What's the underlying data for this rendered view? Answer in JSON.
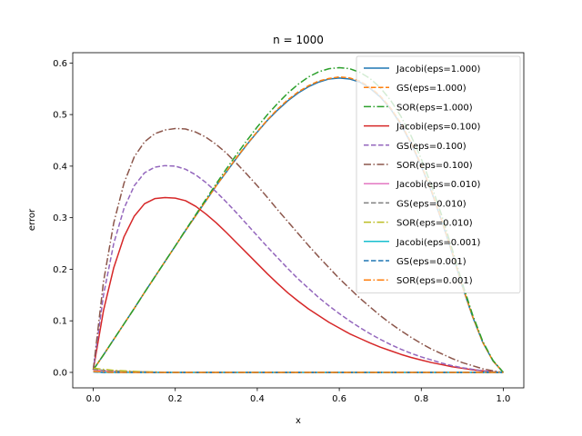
{
  "chart_data": {
    "type": "line",
    "title": "n = 1000",
    "xlabel": "x",
    "ylabel": "error",
    "xlim": [
      -0.05,
      1.05
    ],
    "ylim": [
      -0.03,
      0.62
    ],
    "xticks": [
      0.0,
      0.2,
      0.4,
      0.6,
      0.8,
      1.0
    ],
    "xtick_labels": [
      "0.0",
      "0.2",
      "0.4",
      "0.6",
      "0.8",
      "1.0"
    ],
    "yticks": [
      0.0,
      0.1,
      0.2,
      0.3,
      0.4,
      0.5,
      0.6
    ],
    "ytick_labels": [
      "0.0",
      "0.1",
      "0.2",
      "0.3",
      "0.4",
      "0.5",
      "0.6"
    ],
    "grid": false,
    "legend_position": "top-right",
    "x": [
      0.0,
      0.025,
      0.05,
      0.075,
      0.1,
      0.125,
      0.15,
      0.175,
      0.2,
      0.225,
      0.25,
      0.275,
      0.3,
      0.325,
      0.35,
      0.375,
      0.4,
      0.425,
      0.45,
      0.475,
      0.5,
      0.525,
      0.55,
      0.575,
      0.6,
      0.625,
      0.65,
      0.675,
      0.7,
      0.725,
      0.75,
      0.775,
      0.8,
      0.825,
      0.85,
      0.875,
      0.9,
      0.925,
      0.95,
      0.975,
      1.0
    ],
    "series": [
      {
        "name": "Jacobi(eps=1.000)",
        "color": "#1f77b4",
        "dash": "solid",
        "values": [
          0.005,
          0.034,
          0.064,
          0.094,
          0.124,
          0.155,
          0.185,
          0.215,
          0.245,
          0.275,
          0.304,
          0.333,
          0.362,
          0.389,
          0.416,
          0.442,
          0.466,
          0.489,
          0.509,
          0.527,
          0.542,
          0.554,
          0.563,
          0.569,
          0.571,
          0.569,
          0.563,
          0.551,
          0.534,
          0.511,
          0.481,
          0.444,
          0.4,
          0.35,
          0.293,
          0.232,
          0.167,
          0.108,
          0.058,
          0.022,
          0.0
        ]
      },
      {
        "name": "GS(eps=1.000)",
        "color": "#ff7f0e",
        "dash": "dashed",
        "values": [
          0.005,
          0.034,
          0.064,
          0.094,
          0.124,
          0.155,
          0.185,
          0.215,
          0.245,
          0.275,
          0.304,
          0.333,
          0.362,
          0.39,
          0.417,
          0.443,
          0.467,
          0.49,
          0.511,
          0.529,
          0.544,
          0.556,
          0.565,
          0.57,
          0.573,
          0.571,
          0.565,
          0.553,
          0.536,
          0.513,
          0.483,
          0.446,
          0.402,
          0.352,
          0.295,
          0.234,
          0.168,
          0.109,
          0.058,
          0.022,
          0.0
        ]
      },
      {
        "name": "SOR(eps=1.000)",
        "color": "#2ca02c",
        "dash": "dashdot",
        "values": [
          0.005,
          0.034,
          0.064,
          0.094,
          0.124,
          0.155,
          0.185,
          0.215,
          0.245,
          0.276,
          0.306,
          0.336,
          0.366,
          0.395,
          0.423,
          0.45,
          0.476,
          0.5,
          0.522,
          0.542,
          0.559,
          0.573,
          0.583,
          0.589,
          0.591,
          0.589,
          0.582,
          0.57,
          0.552,
          0.528,
          0.497,
          0.459,
          0.414,
          0.362,
          0.304,
          0.24,
          0.173,
          0.112,
          0.06,
          0.023,
          0.0
        ]
      },
      {
        "name": "Jacobi(eps=0.100)",
        "color": "#d62728",
        "dash": "solid",
        "values": [
          0.005,
          0.12,
          0.203,
          0.263,
          0.303,
          0.327,
          0.337,
          0.339,
          0.338,
          0.333,
          0.322,
          0.307,
          0.29,
          0.271,
          0.251,
          0.231,
          0.211,
          0.191,
          0.172,
          0.154,
          0.138,
          0.123,
          0.11,
          0.097,
          0.086,
          0.075,
          0.066,
          0.057,
          0.049,
          0.042,
          0.035,
          0.029,
          0.024,
          0.019,
          0.015,
          0.011,
          0.008,
          0.005,
          0.003,
          0.001,
          0.0
        ]
      },
      {
        "name": "GS(eps=0.100)",
        "color": "#9467bd",
        "dash": "dashed",
        "values": [
          0.005,
          0.15,
          0.25,
          0.318,
          0.362,
          0.387,
          0.398,
          0.401,
          0.4,
          0.394,
          0.383,
          0.368,
          0.35,
          0.33,
          0.309,
          0.287,
          0.265,
          0.243,
          0.222,
          0.201,
          0.181,
          0.163,
          0.145,
          0.129,
          0.114,
          0.1,
          0.087,
          0.075,
          0.064,
          0.054,
          0.045,
          0.037,
          0.03,
          0.024,
          0.018,
          0.013,
          0.009,
          0.006,
          0.003,
          0.001,
          0.0
        ]
      },
      {
        "name": "SOR(eps=0.100)",
        "color": "#8c564b",
        "dash": "dashdot",
        "values": [
          0.005,
          0.176,
          0.29,
          0.367,
          0.418,
          0.447,
          0.463,
          0.47,
          0.473,
          0.472,
          0.466,
          0.456,
          0.442,
          0.425,
          0.405,
          0.384,
          0.362,
          0.339,
          0.315,
          0.292,
          0.269,
          0.246,
          0.224,
          0.203,
          0.182,
          0.163,
          0.144,
          0.127,
          0.11,
          0.095,
          0.081,
          0.068,
          0.056,
          0.045,
          0.036,
          0.027,
          0.019,
          0.013,
          0.007,
          0.003,
          0.0
        ]
      },
      {
        "name": "Jacobi(eps=0.010)",
        "color": "#e377c2",
        "dash": "solid",
        "values": [
          0.005,
          0.003,
          0.002,
          0.001,
          0.001,
          0.001,
          0.0,
          0.0,
          0.0,
          0.0,
          0.0,
          0.0,
          0.0,
          0.0,
          0.0,
          0.0,
          0.0,
          0.0,
          0.0,
          0.0,
          0.0,
          0.0,
          0.0,
          0.0,
          0.0,
          0.0,
          0.0,
          0.0,
          0.0,
          0.0,
          0.0,
          0.0,
          0.0,
          0.0,
          0.0,
          0.0,
          0.0,
          0.0,
          0.0,
          0.0,
          0.0
        ]
      },
      {
        "name": "GS(eps=0.010)",
        "color": "#7f7f7f",
        "dash": "dashed",
        "values": [
          0.006,
          0.004,
          0.003,
          0.002,
          0.001,
          0.001,
          0.0,
          0.0,
          0.0,
          0.0,
          0.0,
          0.0,
          0.0,
          0.0,
          0.0,
          0.0,
          0.0,
          0.0,
          0.0,
          0.0,
          0.0,
          0.0,
          0.0,
          0.0,
          0.0,
          0.0,
          0.0,
          0.0,
          0.0,
          0.0,
          0.0,
          0.0,
          0.0,
          0.0,
          0.0,
          0.0,
          0.0,
          0.0,
          0.0,
          0.0,
          0.0
        ]
      },
      {
        "name": "SOR(eps=0.010)",
        "color": "#bcbd22",
        "dash": "dashdot",
        "values": [
          0.008,
          0.006,
          0.004,
          0.003,
          0.002,
          0.001,
          0.001,
          0.0,
          0.0,
          0.0,
          0.0,
          0.0,
          0.0,
          0.0,
          0.0,
          0.0,
          0.0,
          0.0,
          0.0,
          0.0,
          0.0,
          0.0,
          0.0,
          0.0,
          0.0,
          0.0,
          0.0,
          0.0,
          0.0,
          0.0,
          0.0,
          0.0,
          0.0,
          0.0,
          0.0,
          0.0,
          0.0,
          0.0,
          0.0,
          0.0,
          0.0
        ]
      },
      {
        "name": "Jacobi(eps=0.001)",
        "color": "#17becf",
        "dash": "solid",
        "values": [
          0.001,
          0.0,
          0.0,
          0.0,
          0.0,
          0.0,
          0.0,
          0.0,
          0.0,
          0.0,
          0.0,
          0.0,
          0.0,
          0.0,
          0.0,
          0.0,
          0.0,
          0.0,
          0.0,
          0.0,
          0.0,
          0.0,
          0.0,
          0.0,
          0.0,
          0.0,
          0.0,
          0.0,
          0.0,
          0.0,
          0.0,
          0.0,
          0.0,
          0.0,
          0.0,
          0.0,
          0.0,
          0.0,
          0.0,
          0.0,
          0.0
        ]
      },
      {
        "name": "GS(eps=0.001)",
        "color": "#1f77b4",
        "dash": "dashed",
        "values": [
          0.001,
          0.0,
          0.0,
          0.0,
          0.0,
          0.0,
          0.0,
          0.0,
          0.0,
          0.0,
          0.0,
          0.0,
          0.0,
          0.0,
          0.0,
          0.0,
          0.0,
          0.0,
          0.0,
          0.0,
          0.0,
          0.0,
          0.0,
          0.0,
          0.0,
          0.0,
          0.0,
          0.0,
          0.0,
          0.0,
          0.0,
          0.0,
          0.0,
          0.0,
          0.0,
          0.0,
          0.0,
          0.0,
          0.0,
          0.0,
          0.0
        ]
      },
      {
        "name": "SOR(eps=0.001)",
        "color": "#ff7f0e",
        "dash": "dashdot",
        "values": [
          0.002,
          0.001,
          0.0,
          0.0,
          0.0,
          0.0,
          0.0,
          0.0,
          0.0,
          0.0,
          0.0,
          0.0,
          0.0,
          0.0,
          0.0,
          0.0,
          0.0,
          0.0,
          0.0,
          0.0,
          0.0,
          0.0,
          0.0,
          0.0,
          0.0,
          0.0,
          0.0,
          0.0,
          0.0,
          0.0,
          0.0,
          0.0,
          0.0,
          0.0,
          0.0,
          0.0,
          0.0,
          0.0,
          0.0,
          0.0,
          0.0
        ]
      }
    ]
  }
}
